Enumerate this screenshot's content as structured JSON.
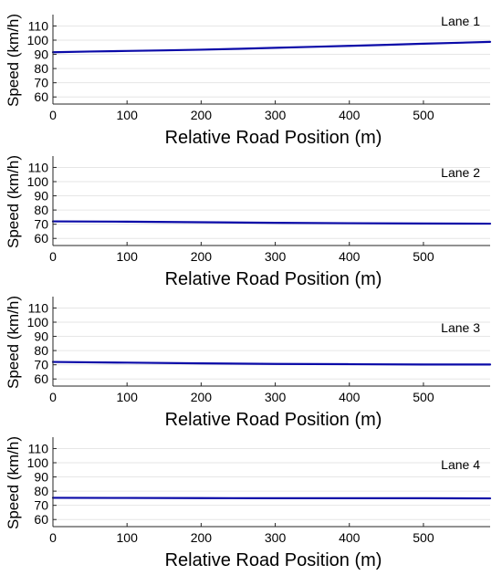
{
  "chart_data": [
    {
      "type": "line",
      "title": "Lane 1",
      "xlabel": "Relative Road Position (m)",
      "ylabel": "Speed (km/h)",
      "xlim": [
        0,
        590
      ],
      "ylim": [
        55,
        118
      ],
      "xticks": [
        0,
        100,
        200,
        300,
        400,
        500
      ],
      "yticks": [
        60,
        70,
        80,
        90,
        100,
        110
      ],
      "grid": true,
      "series": [
        {
          "color": "#0a0aa8",
          "x": [
            0,
            50,
            100,
            150,
            200,
            250,
            300,
            350,
            400,
            450,
            500,
            550,
            590
          ],
          "y": [
            91.5,
            92,
            92.4,
            92.8,
            93.3,
            93.9,
            94.6,
            95.3,
            96,
            96.7,
            97.5,
            98.2,
            98.8
          ]
        }
      ]
    },
    {
      "type": "line",
      "title": "Lane 2",
      "xlabel": "Relative Road Position (m)",
      "ylabel": "Speed (km/h)",
      "xlim": [
        0,
        590
      ],
      "ylim": [
        55,
        118
      ],
      "xticks": [
        0,
        100,
        200,
        300,
        400,
        500
      ],
      "yticks": [
        60,
        70,
        80,
        90,
        100,
        110
      ],
      "grid": true,
      "series": [
        {
          "color": "#0a0aa8",
          "x": [
            0,
            100,
            200,
            300,
            400,
            500,
            590
          ],
          "y": [
            72,
            71.8,
            71.4,
            71,
            70.7,
            70.5,
            70.4
          ]
        }
      ]
    },
    {
      "type": "line",
      "title": "Lane 3",
      "xlabel": "Relative Road Position (m)",
      "ylabel": "Speed (km/h)",
      "xlim": [
        0,
        590
      ],
      "ylim": [
        55,
        118
      ],
      "xticks": [
        0,
        100,
        200,
        300,
        400,
        500
      ],
      "yticks": [
        60,
        70,
        80,
        90,
        100,
        110
      ],
      "grid": true,
      "series": [
        {
          "color": "#0a0aa8",
          "x": [
            0,
            100,
            200,
            300,
            400,
            500,
            590
          ],
          "y": [
            72,
            71.5,
            71,
            70.6,
            70.4,
            70.2,
            70.2
          ]
        }
      ]
    },
    {
      "type": "line",
      "title": "Lane 4",
      "xlabel": "Relative Road Position (m)",
      "ylabel": "Speed (km/h)",
      "xlim": [
        0,
        590
      ],
      "ylim": [
        55,
        118
      ],
      "xticks": [
        0,
        100,
        200,
        300,
        400,
        500
      ],
      "yticks": [
        60,
        70,
        80,
        90,
        100,
        110
      ],
      "grid": true,
      "series": [
        {
          "color": "#0a0aa8",
          "x": [
            0,
            100,
            200,
            300,
            400,
            500,
            590
          ],
          "y": [
            75.3,
            75.2,
            75.1,
            75,
            75,
            75,
            74.9
          ]
        }
      ]
    }
  ]
}
